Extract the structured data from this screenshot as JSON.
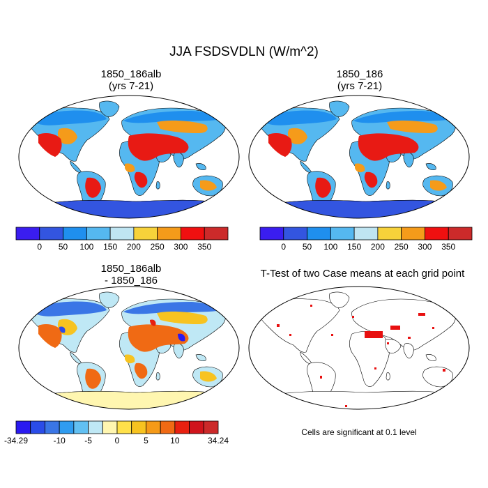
{
  "title": "JJA FSDSVDLN (W/m^2)",
  "panels": [
    {
      "title_line1": "1850_186alb",
      "title_line2": "(yrs 7-21)"
    },
    {
      "title_line1": "1850_186",
      "title_line2": "(yrs 7-21)"
    },
    {
      "title_line1": "1850_186alb",
      "title_line2": "- 1850_186"
    },
    {
      "title_line1": "T-Test of two Case means at each grid point",
      "title_line2": ""
    }
  ],
  "colorbar_abs": {
    "labels": [
      "0",
      "50",
      "100",
      "150",
      "200",
      "250",
      "300",
      "350"
    ],
    "colors": [
      "#3a1df0",
      "#3355e0",
      "#1f8fee",
      "#55b8f0",
      "#bfe5f2",
      "#f7d23a",
      "#f59b1a",
      "#f01010",
      "#cc2a2a"
    ]
  },
  "colorbar_diff": {
    "labels": [
      "-34.29",
      "-10",
      "-5",
      "0",
      "5",
      "10",
      "34.24"
    ],
    "colors": [
      "#2a1af0",
      "#2a4ce8",
      "#3a76e6",
      "#2f9cf0",
      "#62c0f2",
      "#bfe8f5",
      "#fff6b0",
      "#ffe14a",
      "#f7c320",
      "#f59a18",
      "#f06a14",
      "#e82010",
      "#d0141c",
      "#cc2a2a"
    ]
  },
  "ttest_note": "Cells are significant at 0.1 level"
}
